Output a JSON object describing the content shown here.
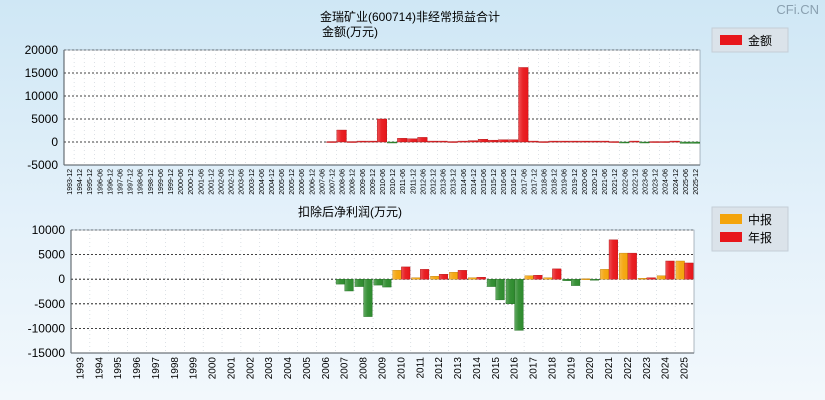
{
  "watermark": "CFi.CN",
  "legend_colors": {
    "year_red": "#e8161b",
    "interim_orange": "#f4a40b"
  },
  "chart_data": [
    {
      "type": "bar",
      "title": "金瑞矿业(600714)非经常损益合计",
      "subtitle": "金额(万元)",
      "legend": [
        {
          "name": "金额",
          "color": "#e8161b"
        }
      ],
      "legend_position": "top-right",
      "ylim": [
        -5000,
        20000
      ],
      "yticks": [
        20000,
        15000,
        10000,
        5000,
        0,
        -5000
      ],
      "grid": true,
      "categories": [
        "1993-12",
        "1994-12",
        "1995-12",
        "1996-06",
        "1996-12",
        "1997-06",
        "1997-12",
        "1998-06",
        "1998-12",
        "1999-06",
        "1999-12",
        "2000-06",
        "2000-12",
        "2001-06",
        "2001-12",
        "2002-06",
        "2002-12",
        "2003-06",
        "2003-12",
        "2004-06",
        "2004-12",
        "2005-06",
        "2005-12",
        "2006-06",
        "2006-12",
        "2007-06",
        "2007-12",
        "2008-06",
        "2008-12",
        "2009-06",
        "2009-12",
        "2010-06",
        "2010-12",
        "2011-06",
        "2011-12",
        "2012-06",
        "2012-12",
        "2013-06",
        "2013-12",
        "2014-06",
        "2014-12",
        "2015-06",
        "2015-12",
        "2016-06",
        "2016-12",
        "2017-06",
        "2017-12",
        "2018-06",
        "2018-12",
        "2019-06",
        "2019-12",
        "2020-06",
        "2020-12",
        "2021-06",
        "2021-12",
        "2022-06",
        "2022-12",
        "2023-06",
        "2023-12",
        "2024-06",
        "2024-12",
        "2025-06",
        "2025-12"
      ],
      "values": [
        0,
        0,
        0,
        0,
        0,
        0,
        0,
        0,
        0,
        0,
        0,
        0,
        0,
        0,
        0,
        0,
        0,
        0,
        0,
        0,
        0,
        0,
        0,
        0,
        0,
        0,
        100,
        2600,
        100,
        200,
        200,
        5000,
        -200,
        800,
        700,
        1000,
        200,
        200,
        100,
        200,
        300,
        600,
        400,
        500,
        500,
        16200,
        200,
        100,
        200,
        200,
        200,
        200,
        200,
        200,
        100,
        -200,
        200,
        -200,
        100,
        100,
        200,
        -300,
        -300
      ],
      "series_colors": {
        "positive": "#e8161b",
        "negative": "#2e8b2e"
      }
    },
    {
      "type": "bar",
      "title": "扣除后净利润(万元)",
      "legend": [
        {
          "name": "中报",
          "color": "#f4a40b"
        },
        {
          "name": "年报",
          "color": "#e8161b"
        }
      ],
      "legend_position": "top-right",
      "ylim": [
        -15000,
        10000
      ],
      "yticks": [
        10000,
        5000,
        0,
        -5000,
        -10000,
        -15000
      ],
      "grid": true,
      "categories": [
        "1993",
        "1994",
        "1995",
        "1996",
        "1997",
        "1998",
        "1999",
        "2000",
        "2001",
        "2002",
        "2003",
        "2004",
        "2005",
        "2006",
        "2007",
        "2008",
        "2009",
        "2010",
        "2011",
        "2012",
        "2013",
        "2014",
        "2015",
        "2016",
        "2017",
        "2018",
        "2019",
        "2020",
        "2021",
        "2022",
        "2023",
        "2024",
        "2025"
      ],
      "series": [
        {
          "name": "中报",
          "values": [
            0,
            0,
            0,
            0,
            0,
            0,
            0,
            0,
            0,
            0,
            0,
            0,
            0,
            0,
            -1000,
            -1500,
            -1200,
            1800,
            300,
            600,
            1400,
            300,
            -1500,
            -5000,
            700,
            300,
            -300,
            100,
            2000,
            5300,
            200,
            700,
            3700
          ]
        },
        {
          "name": "年报",
          "values": [
            0,
            0,
            0,
            0,
            0,
            0,
            0,
            0,
            0,
            0,
            0,
            0,
            0,
            0,
            -2400,
            -7600,
            -1600,
            2500,
            2000,
            1000,
            1800,
            400,
            -4200,
            -10400,
            800,
            2100,
            -1300,
            -200,
            8000,
            5300,
            300,
            3700,
            3300
          ]
        }
      ],
      "negative_color": "#2e8b2e"
    }
  ]
}
